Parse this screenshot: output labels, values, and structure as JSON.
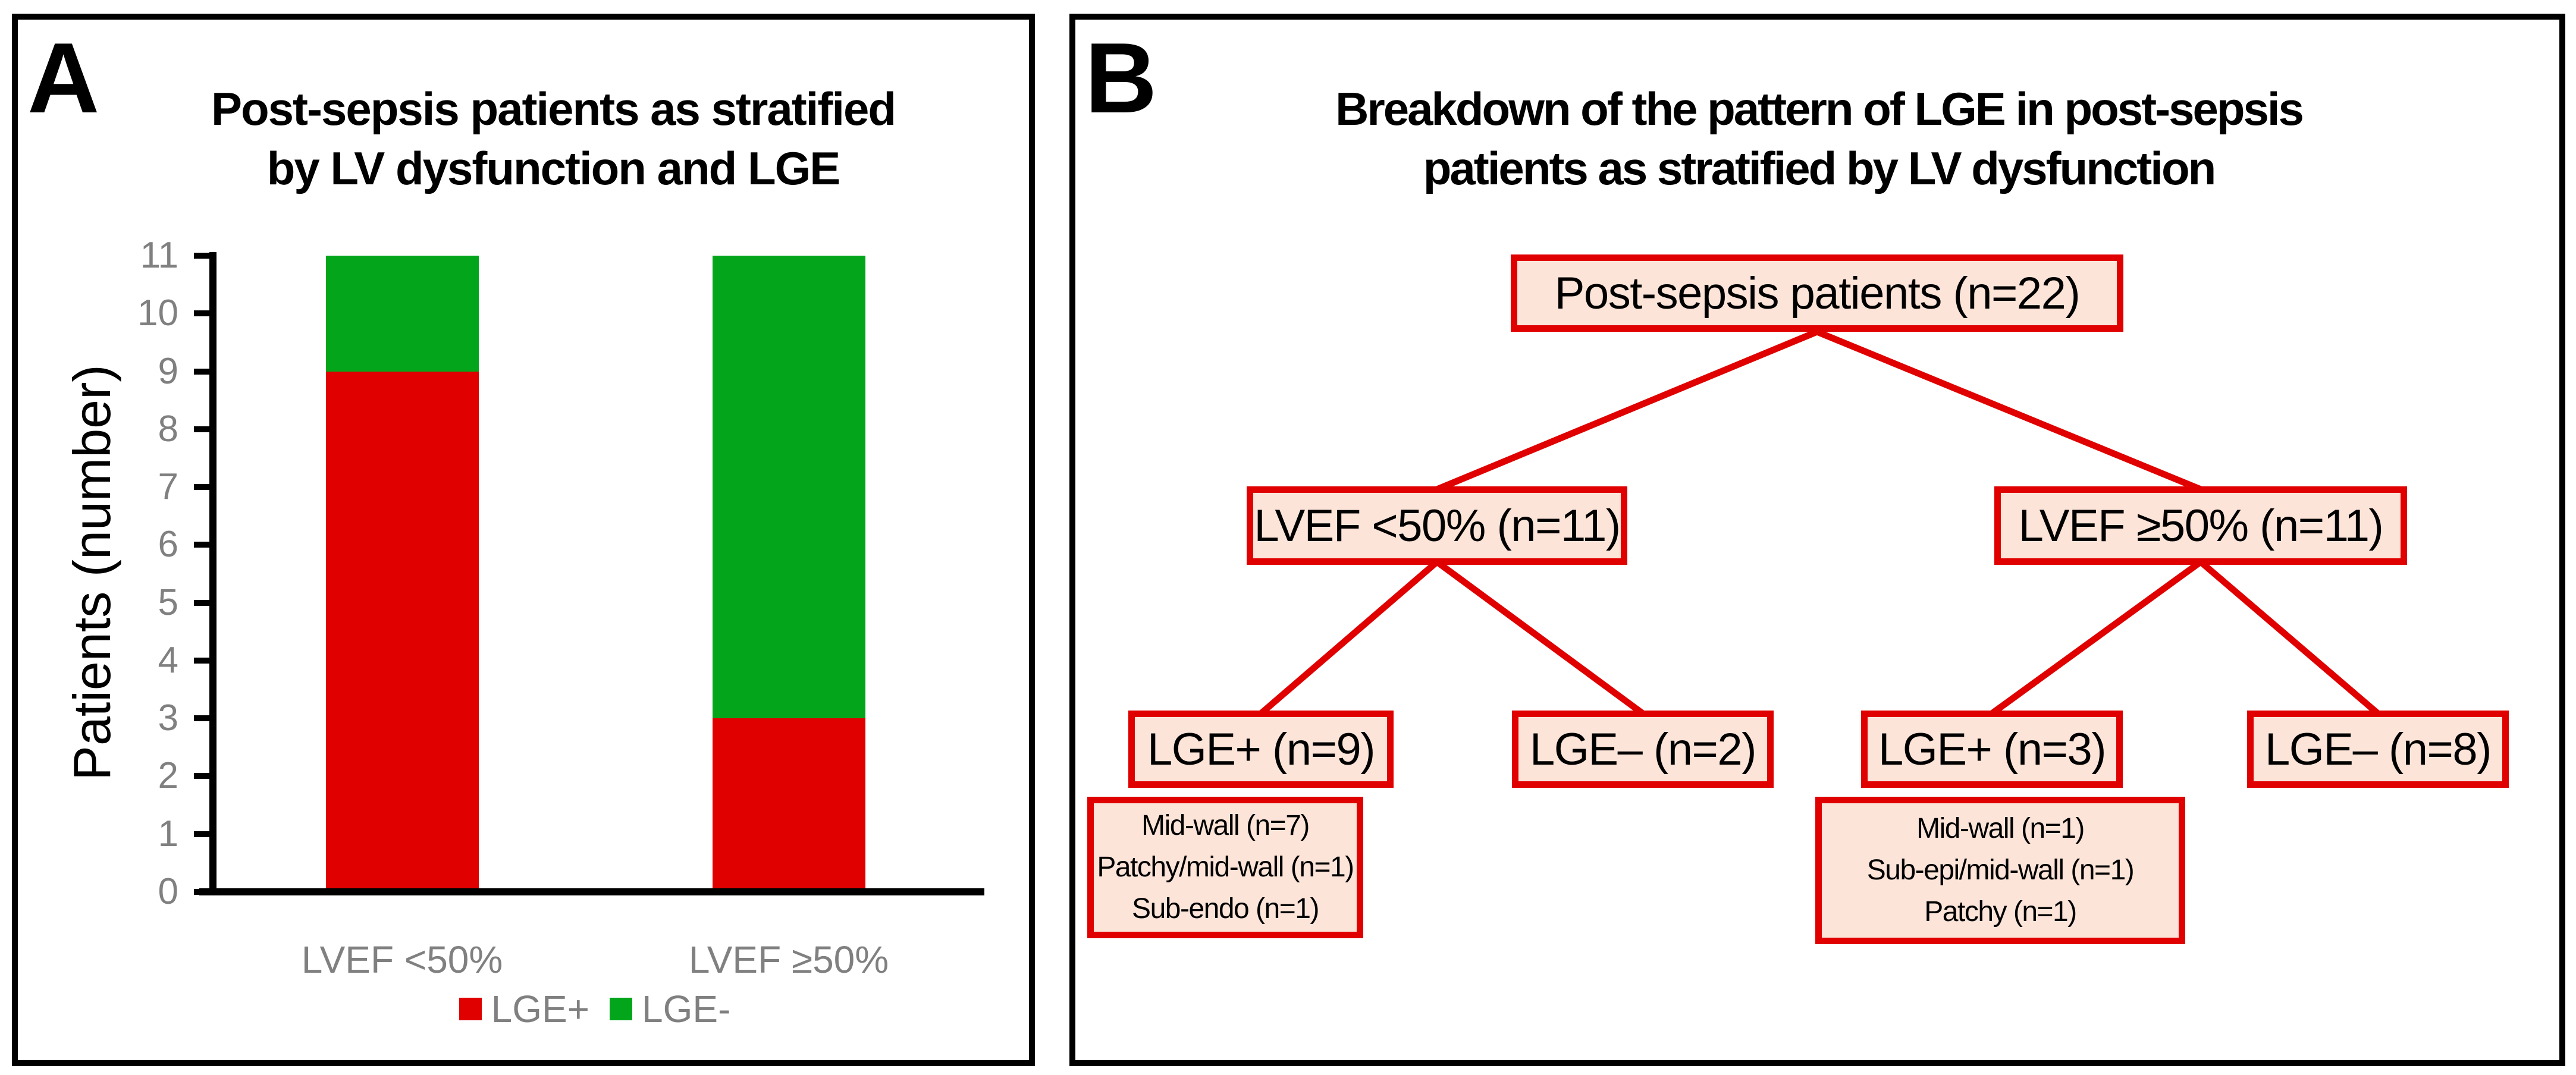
{
  "figure": {
    "panelA": {
      "label": "A",
      "title_line1": "Post-sepsis patients as stratified",
      "title_line2": "by LV dysfunction and LGE"
    },
    "panelB": {
      "label": "B",
      "title_line1": "Breakdown of the pattern of LGE in post-sepsis",
      "title_line2": "patients as stratified by LV dysfunction",
      "tree": {
        "root": "Post-sepsis patients (n=22)",
        "level2_left": "LVEF <50% (n=11)",
        "level2_right": "LVEF ≥50% (n=11)",
        "level3": [
          "LGE+ (n=9)",
          "LGE– (n=2)",
          "LGE+ (n=3)",
          "LGE– (n=8)"
        ],
        "detail_left": [
          "Mid-wall (n=7)",
          "Patchy/mid-wall (n=1)",
          "Sub-endo (n=1)"
        ],
        "detail_right": [
          "Mid-wall (n=1)",
          "Sub-epi/mid-wall (n=1)",
          "Patchy (n=1)"
        ]
      }
    }
  },
  "chart_data": {
    "type": "bar",
    "stacked": true,
    "title": "Post-sepsis patients as stratified by LV dysfunction and LGE",
    "categories": [
      "LVEF <50%",
      "LVEF ≥50%"
    ],
    "series": [
      {
        "name": "LGE+",
        "color": "#e00000",
        "values": [
          9,
          3
        ]
      },
      {
        "name": "LGE-",
        "color": "#03a61a",
        "values": [
          2,
          8
        ]
      }
    ],
    "xlabel": "",
    "ylabel": "Patients (number)",
    "ylim": [
      0,
      11
    ],
    "yticks": [
      0,
      1,
      2,
      3,
      4,
      5,
      6,
      7,
      8,
      9,
      10,
      11
    ],
    "grid": false,
    "legend_position": "bottom"
  },
  "colors": {
    "bar_red": "#e00000",
    "bar_green": "#03a61a",
    "box_fill": "#fce4d8",
    "box_border": "#e00000",
    "axis_gray": "#808080",
    "panel_border": "#000000"
  }
}
